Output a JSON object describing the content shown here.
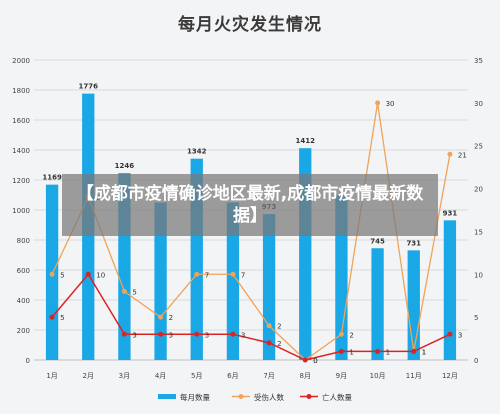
{
  "chart_data": {
    "type": "bar",
    "title": "每月火灾发生情况",
    "categories": [
      "1月",
      "2月",
      "3月",
      "4月",
      "5月",
      "6月",
      "7月",
      "8月",
      "9月",
      "10月",
      "11月",
      "12月"
    ],
    "series": [
      {
        "name": "每月数量",
        "kind": "bar",
        "axis": "left",
        "color": "#19a7e6",
        "values": [
          1169,
          1776,
          1246,
          1050,
          1342,
          1050,
          973,
          1412,
          1100,
          745,
          731,
          931
        ],
        "labels": [
          "1169",
          "1776",
          "1246",
          "",
          "1342",
          "",
          "973",
          "1412",
          "",
          "745",
          "731",
          "931"
        ]
      },
      {
        "name": "受伤人数",
        "kind": "line",
        "axis": "right",
        "color": "#f0a35a",
        "values": [
          10,
          19,
          8,
          5,
          10,
          10,
          4,
          0,
          3,
          30,
          1,
          24
        ],
        "labels": [
          "5",
          "9",
          "5",
          "2",
          "7",
          "7",
          "2",
          "0",
          "2",
          "30",
          "1",
          "21"
        ]
      },
      {
        "name": "亡人数量",
        "kind": "line",
        "axis": "right",
        "color": "#dd2222",
        "values": [
          5,
          10,
          3,
          3,
          3,
          3,
          2,
          0,
          1,
          1,
          1,
          3
        ],
        "labels": [
          "5",
          "10",
          "3",
          "3",
          "3",
          "3",
          "2",
          "0",
          "1",
          "1",
          "1",
          "3"
        ]
      }
    ],
    "ylim_left": [
      0,
      2000
    ],
    "yticks_left": [
      0,
      200,
      400,
      600,
      800,
      1000,
      1200,
      1400,
      1600,
      1800,
      2000
    ],
    "ylim_right": [
      0,
      35
    ],
    "yticks_right": [
      0,
      5,
      10,
      15,
      20,
      25,
      30,
      35
    ],
    "grid": true,
    "legend": "bottom"
  },
  "overlay": {
    "text": "【成都市疫情确诊地区最新,成都市疫情最新数据】"
  }
}
